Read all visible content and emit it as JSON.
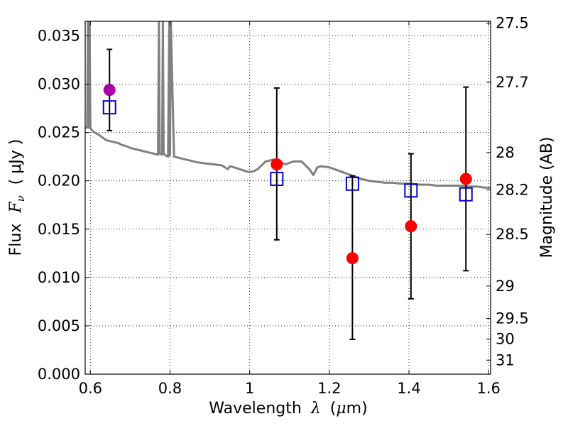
{
  "chart_data": {
    "type": "scatter",
    "x_axis": {
      "label_prefix": "Wavelength",
      "label_symbol": "λ",
      "label_unit_open": "(",
      "label_unit_mu": "μ",
      "label_unit_rest": "m)",
      "range": [
        0.587,
        1.605
      ],
      "ticks": [
        {
          "value": 0.6,
          "label": "0.6"
        },
        {
          "value": 0.8,
          "label": "0.8"
        },
        {
          "value": 1.0,
          "label": "1"
        },
        {
          "value": 1.2,
          "label": "1.2"
        },
        {
          "value": 1.4,
          "label": "1.4"
        },
        {
          "value": 1.6,
          "label": "1.6"
        }
      ]
    },
    "y_axis": {
      "label_prefix": "Flux",
      "label_symbol": "F",
      "label_subscript": "ν",
      "label_unit": "( μJy )",
      "range": [
        0,
        0.0365
      ],
      "ticks": [
        {
          "value": 0.0,
          "label": "0.000"
        },
        {
          "value": 0.005,
          "label": "0.005"
        },
        {
          "value": 0.01,
          "label": "0.010"
        },
        {
          "value": 0.015,
          "label": "0.015"
        },
        {
          "value": 0.02,
          "label": "0.020"
        },
        {
          "value": 0.025,
          "label": "0.025"
        },
        {
          "value": 0.03,
          "label": "0.030"
        },
        {
          "value": 0.035,
          "label": "0.035"
        }
      ]
    },
    "y2_axis": {
      "label": "Magnitude (AB)",
      "ticks": [
        {
          "mag": 27.5,
          "label": "27.5"
        },
        {
          "mag": 27.7,
          "label": "27.7"
        },
        {
          "mag": 28,
          "label": "28"
        },
        {
          "mag": 28.2,
          "label": "28.2"
        },
        {
          "mag": 28.5,
          "label": "28.5"
        },
        {
          "mag": 29,
          "label": "29"
        },
        {
          "mag": 29.5,
          "label": "29.5"
        },
        {
          "mag": 30,
          "label": "30"
        },
        {
          "mag": 31,
          "label": "31"
        }
      ]
    },
    "grid": true,
    "observed_points": [
      {
        "x": 0.648,
        "y": 0.0294,
        "color": "#aa00aa"
      },
      {
        "x": 1.068,
        "y": 0.0217,
        "color": "#ff0000"
      },
      {
        "x": 1.258,
        "y": 0.012,
        "color": "#ff0000"
      },
      {
        "x": 1.405,
        "y": 0.0153,
        "color": "#ff0000"
      },
      {
        "x": 1.543,
        "y": 0.0202,
        "color": "#ff0000"
      }
    ],
    "model_points": [
      {
        "x": 0.648,
        "y": 0.0276,
        "err_low": 0.0252,
        "err_high": 0.0336
      },
      {
        "x": 1.068,
        "y": 0.0202,
        "err_low": 0.0139,
        "err_high": 0.0296
      },
      {
        "x": 1.258,
        "y": 0.0197,
        "err_low": 0.0036,
        "err_high": 0.0205
      },
      {
        "x": 1.405,
        "y": 0.019,
        "err_low": 0.0078,
        "err_high": 0.0228
      },
      {
        "x": 1.543,
        "y": 0.0186,
        "err_low": 0.0107,
        "err_high": 0.0297
      }
    ],
    "model_spectrum": {
      "color": "#808080",
      "x": [
        0.587,
        0.592,
        0.594,
        0.596,
        0.598,
        0.6,
        0.605,
        0.61,
        0.62,
        0.63,
        0.64,
        0.65,
        0.66,
        0.67,
        0.68,
        0.69,
        0.7,
        0.71,
        0.72,
        0.73,
        0.74,
        0.75,
        0.76,
        0.77,
        0.772,
        0.774,
        0.78,
        0.782,
        0.784,
        0.79,
        0.795,
        0.798,
        0.8,
        0.802,
        0.81,
        0.83,
        0.85,
        0.87,
        0.89,
        0.91,
        0.93,
        0.945,
        0.95,
        0.96,
        0.975,
        0.99,
        1.0,
        1.01,
        1.02,
        1.04,
        1.06,
        1.08,
        1.09,
        1.11,
        1.13,
        1.15,
        1.16,
        1.17,
        1.18,
        1.2,
        1.22,
        1.24,
        1.26,
        1.28,
        1.3,
        1.32,
        1.34,
        1.36,
        1.38,
        1.4,
        1.43,
        1.45,
        1.47,
        1.49,
        1.51,
        1.53,
        1.55,
        1.57,
        1.59,
        1.605
      ],
      "y": [
        0.0255,
        0.0255,
        0.0365,
        0.0255,
        0.0365,
        0.0254,
        0.0252,
        0.025,
        0.0248,
        0.0245,
        0.0242,
        0.0241,
        0.024,
        0.0239,
        0.0237,
        0.0236,
        0.0234,
        0.0233,
        0.0232,
        0.0231,
        0.023,
        0.0229,
        0.0228,
        0.0227,
        0.0365,
        0.0228,
        0.0227,
        0.0365,
        0.0228,
        0.0226,
        0.0225,
        0.0365,
        0.0226,
        0.0365,
        0.0225,
        0.0223,
        0.0221,
        0.0219,
        0.0218,
        0.0217,
        0.0216,
        0.0212,
        0.0215,
        0.0214,
        0.0212,
        0.021,
        0.0209,
        0.021,
        0.0212,
        0.022,
        0.0222,
        0.0219,
        0.0217,
        0.022,
        0.022,
        0.0212,
        0.0206,
        0.0214,
        0.0215,
        0.0214,
        0.0211,
        0.0208,
        0.0205,
        0.0202,
        0.02,
        0.0199,
        0.0198,
        0.0198,
        0.0197,
        0.0197,
        0.0196,
        0.0196,
        0.0195,
        0.0195,
        0.0195,
        0.0195,
        0.0194,
        0.0194,
        0.0193,
        0.0193
      ]
    }
  }
}
